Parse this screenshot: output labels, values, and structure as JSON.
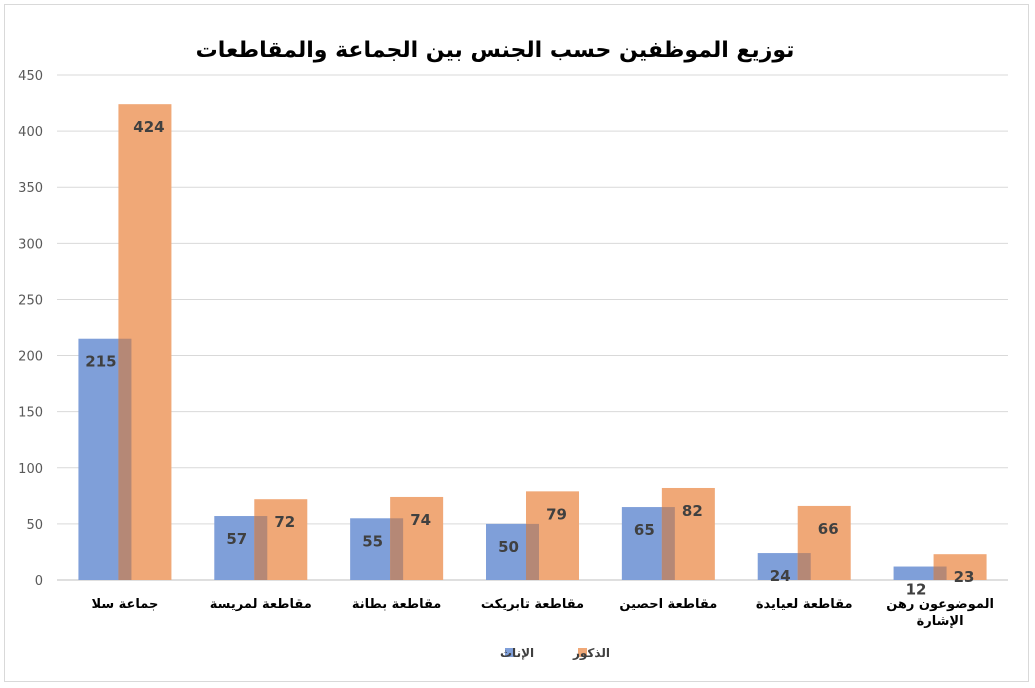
{
  "chart_data": {
    "type": "bar",
    "title": "توزيع الموظفين حسب الجنس بين الجماعة والمقاطعات",
    "categories": [
      [
        "جماعة سلا"
      ],
      [
        "مقاطعة لمريسة"
      ],
      [
        "مقاطعة بطانة"
      ],
      [
        "مقاطعة تابريكت"
      ],
      [
        "مقاطعة احصين"
      ],
      [
        "مقاطعة لعيايدة"
      ],
      [
        "الموضوعون رهن",
        "الإشارة"
      ]
    ],
    "series": [
      {
        "name": "الإناث",
        "values": [
          215,
          57,
          55,
          50,
          65,
          24,
          12
        ],
        "color": "#7f9fd9"
      },
      {
        "name": "الذكور",
        "values": [
          424,
          72,
          74,
          79,
          82,
          66,
          23
        ],
        "color": "#f0a877"
      }
    ],
    "yticks": [
      "0",
      "50",
      "100",
      "150",
      "200",
      "250",
      "300",
      "350",
      "400",
      "450"
    ],
    "ylim": [
      0,
      450
    ],
    "grid": true,
    "legend": "bottom"
  }
}
